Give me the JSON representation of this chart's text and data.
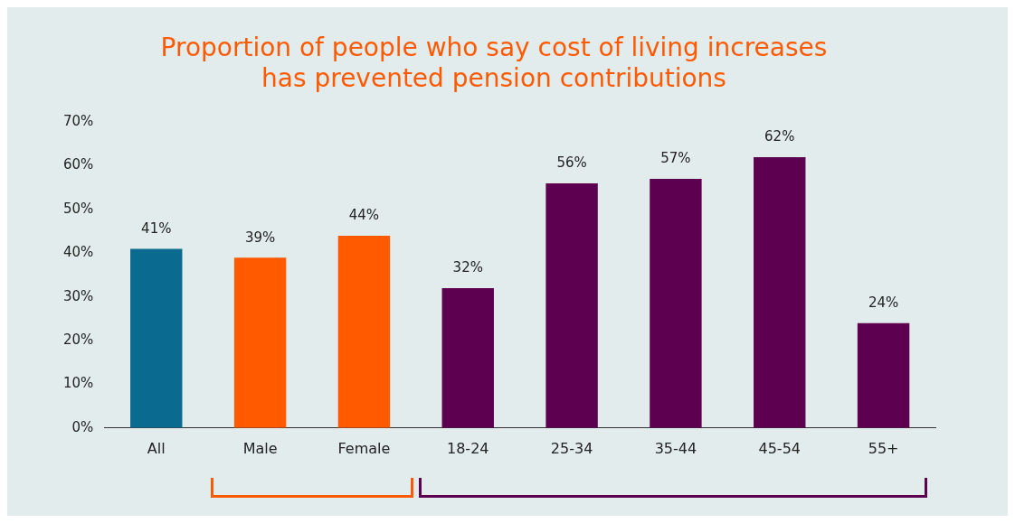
{
  "chart_data": {
    "type": "bar",
    "title": "Proportion of people who say cost of living increases\nhas prevented pension contributions",
    "categories": [
      "All",
      "Male",
      "Female",
      "18-24",
      "25-34",
      "35-44",
      "45-54",
      "55+"
    ],
    "values": [
      41,
      39,
      44,
      32,
      56,
      57,
      62,
      24
    ],
    "colors": [
      "#0b6a8f",
      "#ff5a00",
      "#ff5a00",
      "#5e0050",
      "#5e0050",
      "#5e0050",
      "#5e0050",
      "#5e0050"
    ],
    "value_labels": [
      "41%",
      "39%",
      "44%",
      "32%",
      "56%",
      "57%",
      "62%",
      "24%"
    ],
    "ylim": [
      0,
      70
    ],
    "yticks": [
      {
        "value": 0,
        "label": "0%"
      },
      {
        "value": 10,
        "label": "10%"
      },
      {
        "value": 20,
        "label": "20%"
      },
      {
        "value": 30,
        "label": "30%"
      },
      {
        "value": 40,
        "label": "40%"
      },
      {
        "value": 50,
        "label": "50%"
      },
      {
        "value": 60,
        "label": "60%"
      },
      {
        "value": 70,
        "label": "70%"
      }
    ],
    "grid": false,
    "legend": false
  }
}
